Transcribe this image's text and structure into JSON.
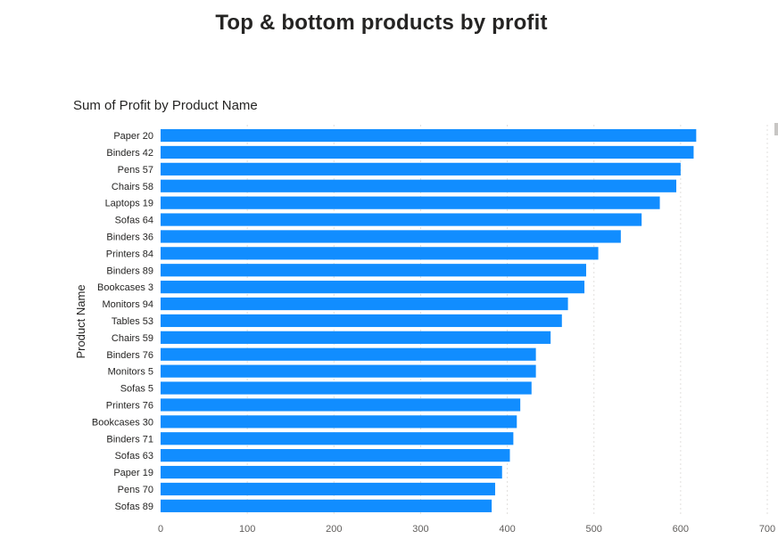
{
  "page": {
    "title": "Top & bottom products by profit"
  },
  "chart_data": {
    "type": "bar",
    "orientation": "horizontal",
    "title": "Sum of Profit by Product Name",
    "xlabel": "",
    "ylabel": "Product Name",
    "categories": [
      "Paper 20",
      "Binders 42",
      "Pens 57",
      "Chairs 58",
      "Laptops 19",
      "Sofas 64",
      "Binders 36",
      "Printers 84",
      "Binders 89",
      "Bookcases 3",
      "Monitors 94",
      "Tables 53",
      "Chairs 59",
      "Binders 76",
      "Monitors 5",
      "Sofas 5",
      "Printers 76",
      "Bookcases 30",
      "Binders 71",
      "Sofas 63",
      "Paper 19",
      "Pens 70",
      "Sofas 89"
    ],
    "values": [
      618,
      615,
      600,
      595,
      576,
      555,
      531,
      505,
      491,
      489,
      470,
      463,
      450,
      433,
      433,
      428,
      415,
      411,
      407,
      403,
      394,
      386,
      382
    ],
    "xlim": [
      0,
      700
    ],
    "xticks": [
      0,
      100,
      200,
      300,
      400,
      500,
      600,
      700
    ],
    "grid": true,
    "legend": "none",
    "bar_color": "#118DFF",
    "grid_color": "#e1dfdd"
  }
}
